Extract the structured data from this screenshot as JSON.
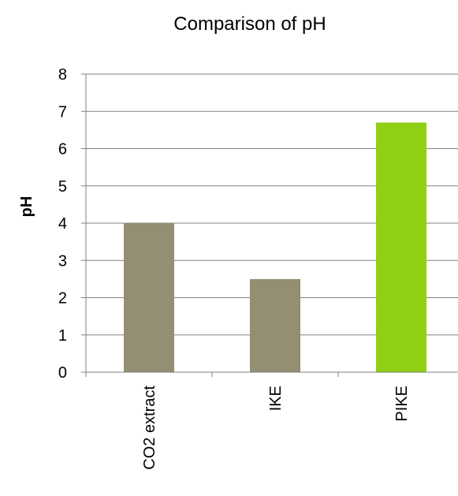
{
  "chart_data": {
    "type": "bar",
    "title": "Comparison of pH",
    "xlabel": "",
    "ylabel": "pH",
    "ylim": [
      0,
      8
    ],
    "yticks": [
      0,
      1,
      2,
      3,
      4,
      5,
      6,
      7,
      8
    ],
    "grid": true,
    "legend": "none",
    "categories": [
      "CO2 extract",
      "IKE",
      "PIKE"
    ],
    "values": [
      4.0,
      2.5,
      6.7
    ],
    "colors": [
      "#948e72",
      "#948e72",
      "#8fd014"
    ],
    "axis_color": "#808080",
    "grid_color": "#808080"
  }
}
